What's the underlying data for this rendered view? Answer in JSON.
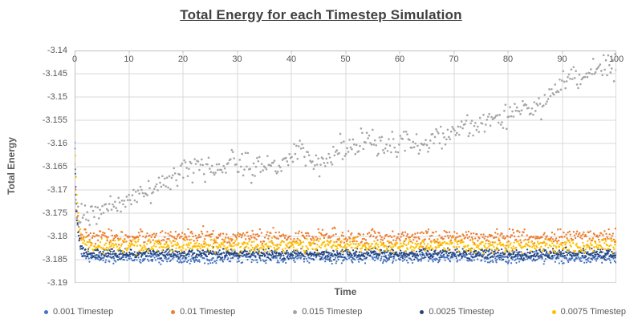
{
  "chart_data": {
    "type": "scatter",
    "title": "Total Energy for each Timestep Simulation",
    "xlabel": "Time",
    "ylabel": "Total Energy",
    "xlim": [
      0,
      100
    ],
    "ylim": [
      -3.19,
      -3.14
    ],
    "x_ticks": [
      "0",
      "10",
      "20",
      "30",
      "40",
      "50",
      "60",
      "70",
      "80",
      "90",
      "100"
    ],
    "y_ticks": [
      "-3.14",
      "-3.145",
      "-3.15",
      "-3.155",
      "-3.16",
      "-3.165",
      "-3.17",
      "-3.175",
      "-3.18",
      "-3.185",
      "-3.19"
    ],
    "grid": true,
    "gridlines": "both",
    "legend_position": "bottom",
    "x_axis_position": "top",
    "series": [
      {
        "name": "0.001 Timestep",
        "color": "#4472C4",
        "n_points": 950,
        "equilibrium_start": -3.1845,
        "equilibrium_end": -3.1845,
        "noise_sd": 0.0006,
        "initial_value": -3.16,
        "transient_tau": 0.45,
        "marker_radius": 1.1,
        "drift": false
      },
      {
        "name": "0.01 Timestep",
        "color": "#ED7D31",
        "n_points": 650,
        "equilibrium_start": -3.1801,
        "equilibrium_end": -3.1801,
        "noise_sd": 0.0008,
        "initial_value": -3.164,
        "transient_tau": 0.35,
        "marker_radius": 1.2,
        "drift": false
      },
      {
        "name": "0.015 Timestep",
        "color": "#A5A5A5",
        "n_points": 470,
        "equilibrium_start": -3.1757,
        "equilibrium_end": -3.1478,
        "noise_sd": 0.00125,
        "initial_value": -3.1725,
        "transient_tau": 0.3,
        "marker_radius": 1.3,
        "drift": true
      },
      {
        "name": "0.0025 Timestep",
        "color": "#264478",
        "n_points": 950,
        "equilibrium_start": -3.1837,
        "equilibrium_end": -3.1837,
        "noise_sd": 0.00055,
        "initial_value": -3.1615,
        "transient_tau": 0.4,
        "marker_radius": 1.1,
        "drift": false
      },
      {
        "name": "0.0075 Timestep",
        "color": "#FFC000",
        "n_points": 780,
        "equilibrium_start": -3.182,
        "equilibrium_end": -3.182,
        "noise_sd": 0.0007,
        "initial_value": -3.1585,
        "transient_tau": 0.5,
        "marker_radius": 1.2,
        "drift": false
      }
    ]
  },
  "style": {
    "grid_color": "#D9D9D9",
    "axis_color": "#BFBFBF",
    "text_color": "#595959",
    "title_color": "#404040",
    "background": "#FFFFFF"
  }
}
